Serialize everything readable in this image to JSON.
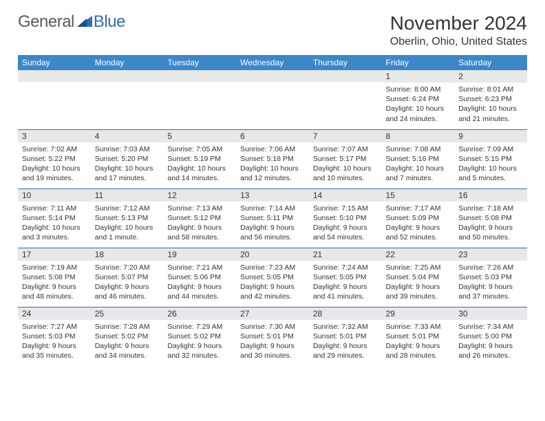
{
  "brand": {
    "name1": "General",
    "name2": "Blue"
  },
  "title": "November 2024",
  "location": "Oberlin, Ohio, United States",
  "colors": {
    "header_bg": "#3b87c8",
    "rule": "#2d6fb5",
    "daynum_bg": "#e8e8e8",
    "text": "#333333",
    "logo_gray": "#5a5a5a",
    "logo_blue": "#2d6fb5"
  },
  "typography": {
    "title_fontsize": 28,
    "location_fontsize": 16,
    "th_fontsize": 12,
    "cell_fontsize": 10.5
  },
  "weekdays": [
    "Sunday",
    "Monday",
    "Tuesday",
    "Wednesday",
    "Thursday",
    "Friday",
    "Saturday"
  ],
  "weeks": [
    [
      {
        "n": "",
        "sunrise": "",
        "sunset": "",
        "day_l1": "",
        "day_l2": ""
      },
      {
        "n": "",
        "sunrise": "",
        "sunset": "",
        "day_l1": "",
        "day_l2": ""
      },
      {
        "n": "",
        "sunrise": "",
        "sunset": "",
        "day_l1": "",
        "day_l2": ""
      },
      {
        "n": "",
        "sunrise": "",
        "sunset": "",
        "day_l1": "",
        "day_l2": ""
      },
      {
        "n": "",
        "sunrise": "",
        "sunset": "",
        "day_l1": "",
        "day_l2": ""
      },
      {
        "n": "1",
        "sunrise": "Sunrise: 8:00 AM",
        "sunset": "Sunset: 6:24 PM",
        "day_l1": "Daylight: 10 hours",
        "day_l2": "and 24 minutes."
      },
      {
        "n": "2",
        "sunrise": "Sunrise: 8:01 AM",
        "sunset": "Sunset: 6:23 PM",
        "day_l1": "Daylight: 10 hours",
        "day_l2": "and 21 minutes."
      }
    ],
    [
      {
        "n": "3",
        "sunrise": "Sunrise: 7:02 AM",
        "sunset": "Sunset: 5:22 PM",
        "day_l1": "Daylight: 10 hours",
        "day_l2": "and 19 minutes."
      },
      {
        "n": "4",
        "sunrise": "Sunrise: 7:03 AM",
        "sunset": "Sunset: 5:20 PM",
        "day_l1": "Daylight: 10 hours",
        "day_l2": "and 17 minutes."
      },
      {
        "n": "5",
        "sunrise": "Sunrise: 7:05 AM",
        "sunset": "Sunset: 5:19 PM",
        "day_l1": "Daylight: 10 hours",
        "day_l2": "and 14 minutes."
      },
      {
        "n": "6",
        "sunrise": "Sunrise: 7:06 AM",
        "sunset": "Sunset: 5:18 PM",
        "day_l1": "Daylight: 10 hours",
        "day_l2": "and 12 minutes."
      },
      {
        "n": "7",
        "sunrise": "Sunrise: 7:07 AM",
        "sunset": "Sunset: 5:17 PM",
        "day_l1": "Daylight: 10 hours",
        "day_l2": "and 10 minutes."
      },
      {
        "n": "8",
        "sunrise": "Sunrise: 7:08 AM",
        "sunset": "Sunset: 5:16 PM",
        "day_l1": "Daylight: 10 hours",
        "day_l2": "and 7 minutes."
      },
      {
        "n": "9",
        "sunrise": "Sunrise: 7:09 AM",
        "sunset": "Sunset: 5:15 PM",
        "day_l1": "Daylight: 10 hours",
        "day_l2": "and 5 minutes."
      }
    ],
    [
      {
        "n": "10",
        "sunrise": "Sunrise: 7:11 AM",
        "sunset": "Sunset: 5:14 PM",
        "day_l1": "Daylight: 10 hours",
        "day_l2": "and 3 minutes."
      },
      {
        "n": "11",
        "sunrise": "Sunrise: 7:12 AM",
        "sunset": "Sunset: 5:13 PM",
        "day_l1": "Daylight: 10 hours",
        "day_l2": "and 1 minute."
      },
      {
        "n": "12",
        "sunrise": "Sunrise: 7:13 AM",
        "sunset": "Sunset: 5:12 PM",
        "day_l1": "Daylight: 9 hours",
        "day_l2": "and 58 minutes."
      },
      {
        "n": "13",
        "sunrise": "Sunrise: 7:14 AM",
        "sunset": "Sunset: 5:11 PM",
        "day_l1": "Daylight: 9 hours",
        "day_l2": "and 56 minutes."
      },
      {
        "n": "14",
        "sunrise": "Sunrise: 7:15 AM",
        "sunset": "Sunset: 5:10 PM",
        "day_l1": "Daylight: 9 hours",
        "day_l2": "and 54 minutes."
      },
      {
        "n": "15",
        "sunrise": "Sunrise: 7:17 AM",
        "sunset": "Sunset: 5:09 PM",
        "day_l1": "Daylight: 9 hours",
        "day_l2": "and 52 minutes."
      },
      {
        "n": "16",
        "sunrise": "Sunrise: 7:18 AM",
        "sunset": "Sunset: 5:08 PM",
        "day_l1": "Daylight: 9 hours",
        "day_l2": "and 50 minutes."
      }
    ],
    [
      {
        "n": "17",
        "sunrise": "Sunrise: 7:19 AM",
        "sunset": "Sunset: 5:08 PM",
        "day_l1": "Daylight: 9 hours",
        "day_l2": "and 48 minutes."
      },
      {
        "n": "18",
        "sunrise": "Sunrise: 7:20 AM",
        "sunset": "Sunset: 5:07 PM",
        "day_l1": "Daylight: 9 hours",
        "day_l2": "and 46 minutes."
      },
      {
        "n": "19",
        "sunrise": "Sunrise: 7:21 AM",
        "sunset": "Sunset: 5:06 PM",
        "day_l1": "Daylight: 9 hours",
        "day_l2": "and 44 minutes."
      },
      {
        "n": "20",
        "sunrise": "Sunrise: 7:23 AM",
        "sunset": "Sunset: 5:05 PM",
        "day_l1": "Daylight: 9 hours",
        "day_l2": "and 42 minutes."
      },
      {
        "n": "21",
        "sunrise": "Sunrise: 7:24 AM",
        "sunset": "Sunset: 5:05 PM",
        "day_l1": "Daylight: 9 hours",
        "day_l2": "and 41 minutes."
      },
      {
        "n": "22",
        "sunrise": "Sunrise: 7:25 AM",
        "sunset": "Sunset: 5:04 PM",
        "day_l1": "Daylight: 9 hours",
        "day_l2": "and 39 minutes."
      },
      {
        "n": "23",
        "sunrise": "Sunrise: 7:26 AM",
        "sunset": "Sunset: 5:03 PM",
        "day_l1": "Daylight: 9 hours",
        "day_l2": "and 37 minutes."
      }
    ],
    [
      {
        "n": "24",
        "sunrise": "Sunrise: 7:27 AM",
        "sunset": "Sunset: 5:03 PM",
        "day_l1": "Daylight: 9 hours",
        "day_l2": "and 35 minutes."
      },
      {
        "n": "25",
        "sunrise": "Sunrise: 7:28 AM",
        "sunset": "Sunset: 5:02 PM",
        "day_l1": "Daylight: 9 hours",
        "day_l2": "and 34 minutes."
      },
      {
        "n": "26",
        "sunrise": "Sunrise: 7:29 AM",
        "sunset": "Sunset: 5:02 PM",
        "day_l1": "Daylight: 9 hours",
        "day_l2": "and 32 minutes."
      },
      {
        "n": "27",
        "sunrise": "Sunrise: 7:30 AM",
        "sunset": "Sunset: 5:01 PM",
        "day_l1": "Daylight: 9 hours",
        "day_l2": "and 30 minutes."
      },
      {
        "n": "28",
        "sunrise": "Sunrise: 7:32 AM",
        "sunset": "Sunset: 5:01 PM",
        "day_l1": "Daylight: 9 hours",
        "day_l2": "and 29 minutes."
      },
      {
        "n": "29",
        "sunrise": "Sunrise: 7:33 AM",
        "sunset": "Sunset: 5:01 PM",
        "day_l1": "Daylight: 9 hours",
        "day_l2": "and 28 minutes."
      },
      {
        "n": "30",
        "sunrise": "Sunrise: 7:34 AM",
        "sunset": "Sunset: 5:00 PM",
        "day_l1": "Daylight: 9 hours",
        "day_l2": "and 26 minutes."
      }
    ]
  ]
}
